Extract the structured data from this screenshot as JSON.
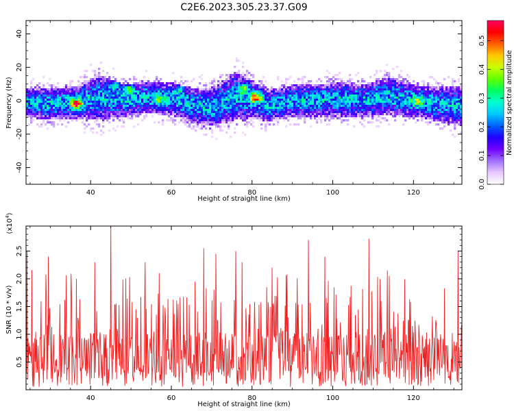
{
  "title": "C2E6.2023.305.23.37.G09",
  "chart_data": [
    {
      "type": "heatmap",
      "xlabel": "Height of straight line (km)",
      "ylabel": "Frequency (Hz)",
      "xlim": [
        24,
        132
      ],
      "ylim": [
        -50,
        48
      ],
      "xticks": [
        40,
        60,
        80,
        100,
        120
      ],
      "yticks": [
        -40,
        -20,
        0,
        20,
        40
      ],
      "description_of_values": "spectral energy band centred near 0 Hz, roughly -20 to +20 Hz wide across all heights, with upward bulges near 42 km and 76 km",
      "band": {
        "center_hz": [
          [
            24,
            -1
          ],
          [
            30,
            -2
          ],
          [
            36,
            -1
          ],
          [
            42,
            2
          ],
          [
            48,
            0
          ],
          [
            54,
            2
          ],
          [
            60,
            1
          ],
          [
            66,
            -3
          ],
          [
            70,
            -4
          ],
          [
            76,
            3
          ],
          [
            80,
            1
          ],
          [
            84,
            -3
          ],
          [
            90,
            0
          ],
          [
            96,
            0
          ],
          [
            102,
            1
          ],
          [
            108,
            0
          ],
          [
            114,
            3
          ],
          [
            120,
            0
          ],
          [
            126,
            -2
          ],
          [
            132,
            -3
          ]
        ],
        "half_width_hz": [
          [
            24,
            9
          ],
          [
            30,
            10
          ],
          [
            36,
            10
          ],
          [
            42,
            14
          ],
          [
            48,
            10
          ],
          [
            54,
            10
          ],
          [
            60,
            10
          ],
          [
            66,
            11
          ],
          [
            70,
            12
          ],
          [
            76,
            15
          ],
          [
            80,
            12
          ],
          [
            84,
            10
          ],
          [
            90,
            10
          ],
          [
            96,
            10
          ],
          [
            102,
            11
          ],
          [
            108,
            10
          ],
          [
            114,
            12
          ],
          [
            120,
            10
          ],
          [
            126,
            11
          ],
          [
            132,
            12
          ]
        ]
      },
      "peaks": [
        {
          "x": 36.5,
          "y": -2,
          "amplitude": 0.52
        },
        {
          "x": 81,
          "y": 2,
          "amplitude": 0.5
        },
        {
          "x": 49.5,
          "y": 7,
          "amplitude": 0.42
        },
        {
          "x": 46,
          "y": 9,
          "amplitude": 0.38
        },
        {
          "x": 78,
          "y": 7,
          "amplitude": 0.36
        },
        {
          "x": 121,
          "y": 0,
          "amplitude": 0.36
        },
        {
          "x": 62,
          "y": 7,
          "amplitude": 0.34
        },
        {
          "x": 57,
          "y": 1,
          "amplitude": 0.32
        }
      ],
      "colorbar": {
        "label": "Normalized spectral amplitude",
        "range": [
          0.0,
          0.57
        ],
        "ticks": [
          0.0,
          0.1,
          0.2,
          0.3,
          0.4,
          0.5
        ],
        "tick_labels": [
          "0.0",
          "0.1",
          "0.2",
          "0.3",
          "0.4",
          "0.5"
        ],
        "colormap": [
          "#ffffff",
          "#e8c8ff",
          "#a070ff",
          "#7000ff",
          "#2000ff",
          "#0060ff",
          "#00c8ff",
          "#00ffd0",
          "#00ff60",
          "#60ff00",
          "#c8ff00",
          "#ffc800",
          "#ff6000",
          "#ff0000",
          "#ff0060"
        ]
      }
    },
    {
      "type": "line",
      "xlabel": "Height of straight line (km)",
      "ylabel": "SNR (10 * v/v)",
      "exponent_label": "(x10",
      "exponent_sup": "4",
      "exponent_close": ")",
      "xlim": [
        24,
        132
      ],
      "ylim": [
        0,
        2.95
      ],
      "xticks": [
        40,
        60,
        80,
        100,
        120
      ],
      "yticks": [
        0.5,
        1.0,
        1.5,
        2.0,
        2.5
      ],
      "ytick_labels": [
        "0.5",
        "1.0",
        "1.5",
        "2.0",
        "2.5"
      ],
      "line_color": "#ee2222",
      "series_profile": "noisy SNR trace sampled every ~0.12 km with baseline 0.2-1.2 and isolated spikes",
      "spikes": [
        {
          "x": 24.2,
          "y": 2.5
        },
        {
          "x": 29.5,
          "y": 2.4
        },
        {
          "x": 36.5,
          "y": 2.0
        },
        {
          "x": 41,
          "y": 2.3
        },
        {
          "x": 45,
          "y": 2.95
        },
        {
          "x": 53.5,
          "y": 2.3
        },
        {
          "x": 57,
          "y": 2.1
        },
        {
          "x": 68,
          "y": 2.55
        },
        {
          "x": 71,
          "y": 2.45
        },
        {
          "x": 76,
          "y": 2.5
        },
        {
          "x": 77.5,
          "y": 2.3
        },
        {
          "x": 85,
          "y": 2.2
        },
        {
          "x": 94,
          "y": 2.7
        },
        {
          "x": 98,
          "y": 2.4
        },
        {
          "x": 109,
          "y": 2.72
        },
        {
          "x": 113.5,
          "y": 2.15
        },
        {
          "x": 131,
          "y": 2.5
        }
      ]
    }
  ]
}
